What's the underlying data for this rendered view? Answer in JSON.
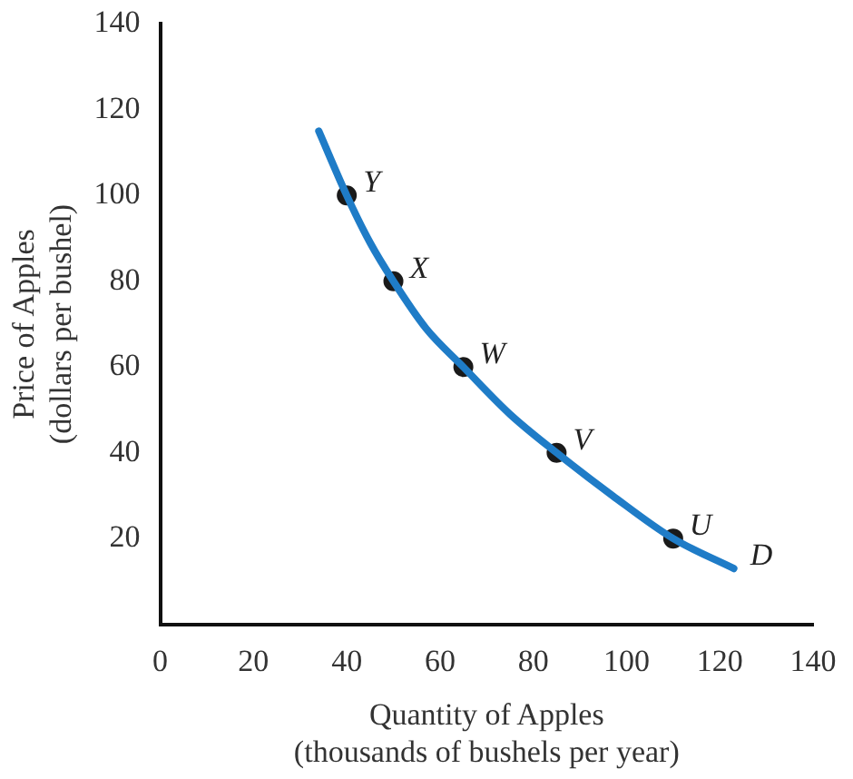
{
  "chart_data": {
    "type": "line",
    "xlabel": "Quantity of Apples\n(thousands of bushels per year)",
    "ylabel": "Price of Apples\n(dollars per bushel)",
    "xlim": [
      0,
      140
    ],
    "xticks": [
      0,
      20,
      40,
      60,
      80,
      100,
      120,
      140
    ],
    "ylim": [
      0,
      140
    ],
    "yticks": [
      20,
      40,
      60,
      80,
      100,
      120,
      140
    ],
    "grid": false,
    "legend": false,
    "series": [
      {
        "color": "#1f7cc7",
        "marker": "none",
        "x": [
          34,
          40,
          45,
          50,
          57,
          65,
          75,
          85,
          97,
          110,
          123
        ],
        "values": [
          115,
          100,
          89,
          80,
          69,
          60,
          49,
          40,
          30,
          20,
          13
        ]
      },
      {
        "type": "scatter",
        "color": "#1a1a1a",
        "marker": "circle",
        "x": [
          40,
          50,
          65,
          85,
          110
        ],
        "values": [
          100,
          80,
          60,
          40,
          20
        ]
      }
    ],
    "annotations": [
      {
        "text": "Y",
        "x": 40,
        "y": 100
      },
      {
        "text": "X",
        "x": 50,
        "y": 80
      },
      {
        "text": "W",
        "x": 65,
        "y": 60
      },
      {
        "text": "V",
        "x": 85,
        "y": 40
      },
      {
        "text": "U",
        "x": 110,
        "y": 20
      },
      {
        "text": "D",
        "x": 123,
        "y": 13
      }
    ]
  }
}
